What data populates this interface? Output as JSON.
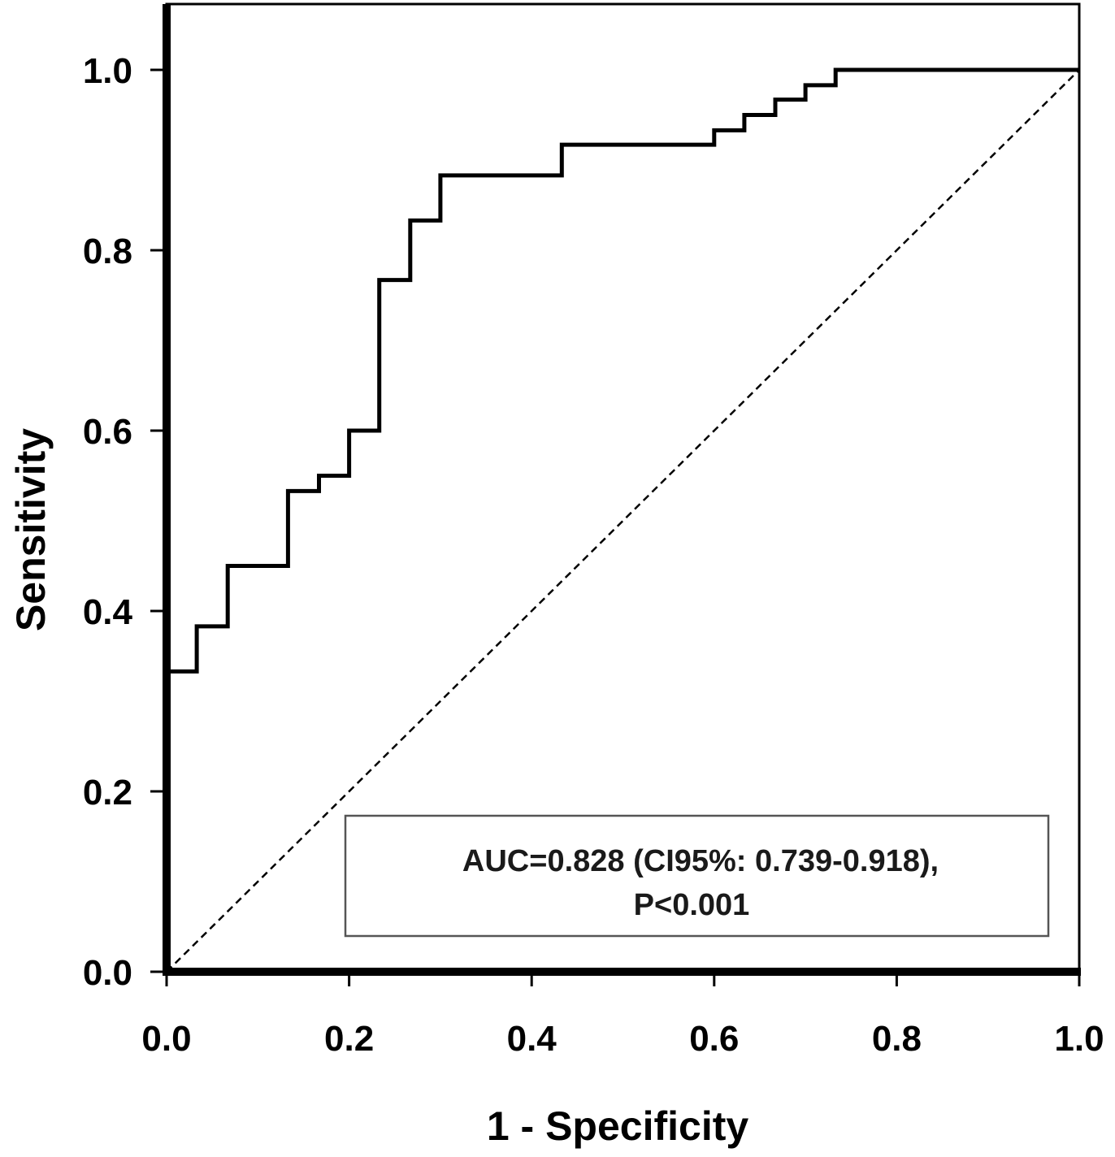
{
  "chart_data": {
    "type": "line",
    "title": "",
    "xlabel": "1 - Specificity",
    "ylabel": "Sensitivity",
    "xlim": [
      0,
      1
    ],
    "ylim": [
      0,
      1
    ],
    "xticks": [
      "0.0",
      "0.2",
      "0.4",
      "0.6",
      "0.8",
      "1.0"
    ],
    "yticks": [
      "0.0",
      "0.2",
      "0.4",
      "0.6",
      "0.8",
      "1.0"
    ],
    "grid": false,
    "series": [
      {
        "style": "solid",
        "color": "#000000",
        "x": [
          0,
          0,
          0.033,
          0.033,
          0.067,
          0.067,
          0.133,
          0.133,
          0.167,
          0.167,
          0.2,
          0.2,
          0.233,
          0.233,
          0.267,
          0.267,
          0.3,
          0.3,
          0.433,
          0.433,
          0.6,
          0.6,
          0.633,
          0.633,
          0.667,
          0.667,
          0.7,
          0.7,
          0.733,
          0.733,
          1.0
        ],
        "y": [
          0,
          0.333,
          0.333,
          0.383,
          0.383,
          0.45,
          0.45,
          0.533,
          0.533,
          0.55,
          0.55,
          0.6,
          0.6,
          0.767,
          0.767,
          0.833,
          0.833,
          0.883,
          0.883,
          0.917,
          0.917,
          0.933,
          0.933,
          0.95,
          0.95,
          0.967,
          0.967,
          0.983,
          0.983,
          1.0,
          1.0
        ]
      },
      {
        "style": "dashed",
        "color": "#000000",
        "x": [
          0,
          1
        ],
        "y": [
          0,
          1
        ]
      }
    ],
    "annotation": {
      "line1": "AUC=0.828 (CI95%: 0.739-0.918),",
      "line2": "P<0.001"
    }
  }
}
